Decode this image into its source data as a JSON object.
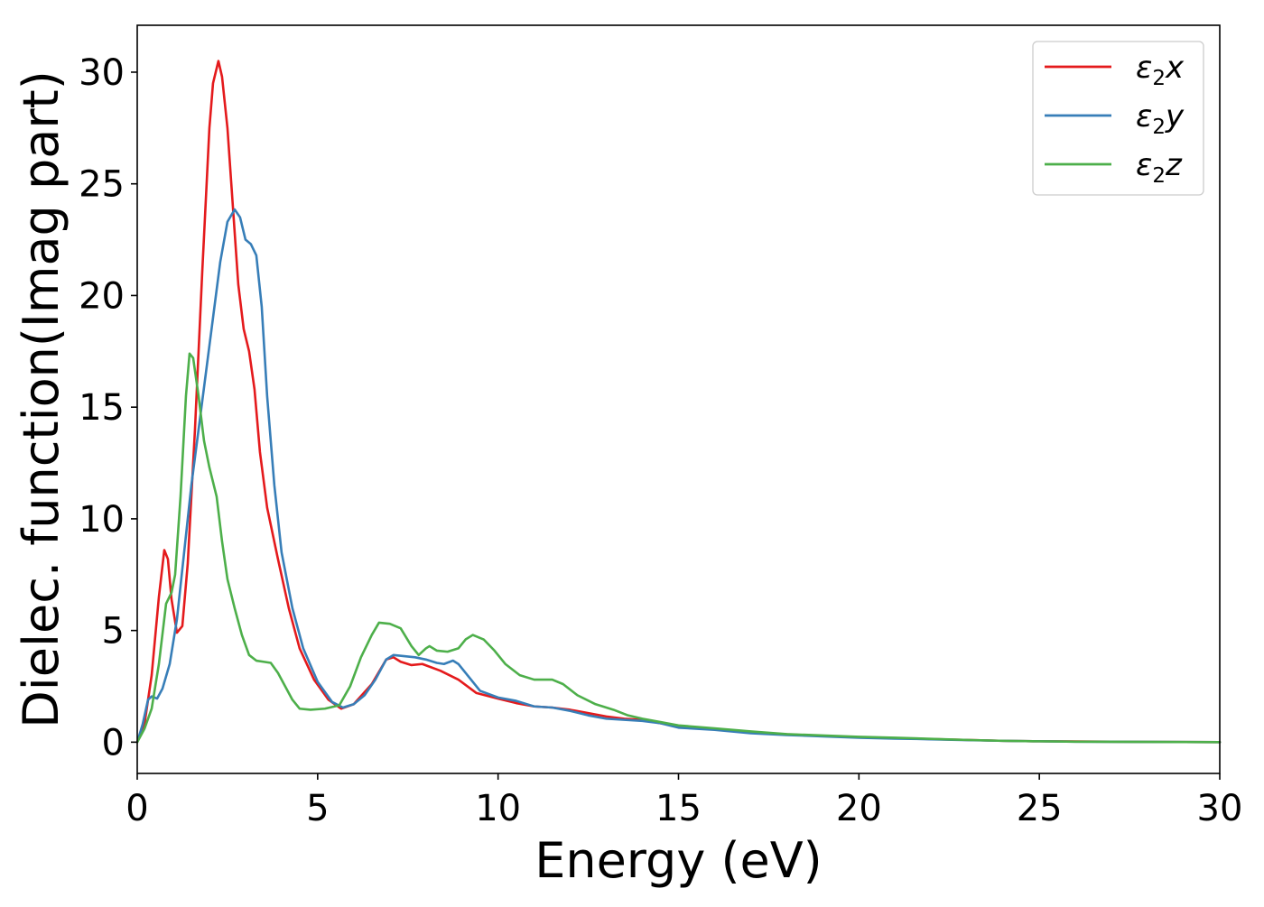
{
  "chart_data": {
    "type": "line",
    "xlabel": "Energy (eV)",
    "ylabel": "Dielec. function(Imag part)",
    "xlim": [
      0,
      30
    ],
    "ylim": [
      -1.4,
      32.1
    ],
    "x_ticks": [
      0,
      5,
      10,
      15,
      20,
      25,
      30
    ],
    "y_ticks": [
      0,
      5,
      10,
      15,
      20,
      25,
      30
    ],
    "x_tick_labels": [
      "0",
      "5",
      "10",
      "15",
      "20",
      "25",
      "30"
    ],
    "y_tick_labels": [
      "0",
      "5",
      "10",
      "15",
      "20",
      "25",
      "30"
    ],
    "grid": false,
    "legend_placement": "top-right",
    "series": [
      {
        "name": "ε₂x",
        "legend_base": "ε",
        "legend_sub": "2",
        "legend_var": "x",
        "color": "#e41a1c",
        "points": [
          [
            0,
            0
          ],
          [
            0.2,
            0.8
          ],
          [
            0.4,
            3
          ],
          [
            0.6,
            6.5
          ],
          [
            0.75,
            8.6
          ],
          [
            0.85,
            8.2
          ],
          [
            0.95,
            6.4
          ],
          [
            1.1,
            4.9
          ],
          [
            1.25,
            5.2
          ],
          [
            1.4,
            8
          ],
          [
            1.6,
            14
          ],
          [
            1.8,
            21
          ],
          [
            2.0,
            27.5
          ],
          [
            2.1,
            29.5
          ],
          [
            2.25,
            30.5
          ],
          [
            2.35,
            29.8
          ],
          [
            2.5,
            27.5
          ],
          [
            2.65,
            24
          ],
          [
            2.8,
            20.5
          ],
          [
            2.95,
            18.5
          ],
          [
            3.1,
            17.5
          ],
          [
            3.25,
            15.8
          ],
          [
            3.4,
            13
          ],
          [
            3.6,
            10.5
          ],
          [
            3.9,
            8.2
          ],
          [
            4.2,
            6
          ],
          [
            4.5,
            4.2
          ],
          [
            4.9,
            2.8
          ],
          [
            5.3,
            1.9
          ],
          [
            5.65,
            1.5
          ],
          [
            6.0,
            1.7
          ],
          [
            6.5,
            2.6
          ],
          [
            6.9,
            3.7
          ],
          [
            7.1,
            3.8
          ],
          [
            7.3,
            3.6
          ],
          [
            7.6,
            3.45
          ],
          [
            7.9,
            3.5
          ],
          [
            8.4,
            3.2
          ],
          [
            8.9,
            2.8
          ],
          [
            9.4,
            2.2
          ],
          [
            10.0,
            1.95
          ],
          [
            10.5,
            1.75
          ],
          [
            11.0,
            1.6
          ],
          [
            11.5,
            1.55
          ],
          [
            12.0,
            1.45
          ],
          [
            12.5,
            1.3
          ],
          [
            13.0,
            1.15
          ],
          [
            13.5,
            1.05
          ],
          [
            14.0,
            1.0
          ],
          [
            14.5,
            0.85
          ],
          [
            15.0,
            0.7
          ],
          [
            16.0,
            0.6
          ],
          [
            17.0,
            0.45
          ],
          [
            18.0,
            0.35
          ],
          [
            19.0,
            0.28
          ],
          [
            20.0,
            0.22
          ],
          [
            21.0,
            0.18
          ],
          [
            22.0,
            0.14
          ],
          [
            23.0,
            0.1
          ],
          [
            24.0,
            0.06
          ],
          [
            25.0,
            0.04
          ],
          [
            26.0,
            0.03
          ],
          [
            28.0,
            0.01
          ],
          [
            30.0,
            0
          ]
        ]
      },
      {
        "name": "ε₂y",
        "legend_base": "ε",
        "legend_sub": "2",
        "legend_var": "y",
        "color": "#377eb8",
        "points": [
          [
            0,
            0
          ],
          [
            0.15,
            0.8
          ],
          [
            0.3,
            1.9
          ],
          [
            0.4,
            2.05
          ],
          [
            0.55,
            1.95
          ],
          [
            0.7,
            2.4
          ],
          [
            0.9,
            3.5
          ],
          [
            1.1,
            5.5
          ],
          [
            1.3,
            8.5
          ],
          [
            1.5,
            11.5
          ],
          [
            1.7,
            14
          ],
          [
            1.9,
            16.5
          ],
          [
            2.1,
            19
          ],
          [
            2.3,
            21.5
          ],
          [
            2.5,
            23.3
          ],
          [
            2.7,
            23.85
          ],
          [
            2.85,
            23.5
          ],
          [
            3.0,
            22.5
          ],
          [
            3.15,
            22.3
          ],
          [
            3.3,
            21.8
          ],
          [
            3.45,
            19.5
          ],
          [
            3.6,
            15.5
          ],
          [
            3.8,
            11.5
          ],
          [
            4.0,
            8.5
          ],
          [
            4.3,
            6
          ],
          [
            4.6,
            4.2
          ],
          [
            5.0,
            2.7
          ],
          [
            5.4,
            1.8
          ],
          [
            5.7,
            1.55
          ],
          [
            6.0,
            1.7
          ],
          [
            6.3,
            2.1
          ],
          [
            6.6,
            2.8
          ],
          [
            6.9,
            3.7
          ],
          [
            7.1,
            3.9
          ],
          [
            7.4,
            3.85
          ],
          [
            7.7,
            3.8
          ],
          [
            8.0,
            3.7
          ],
          [
            8.3,
            3.55
          ],
          [
            8.5,
            3.5
          ],
          [
            8.75,
            3.65
          ],
          [
            8.9,
            3.5
          ],
          [
            9.2,
            2.9
          ],
          [
            9.5,
            2.3
          ],
          [
            10.0,
            2.0
          ],
          [
            10.5,
            1.85
          ],
          [
            11.0,
            1.6
          ],
          [
            11.5,
            1.55
          ],
          [
            12.0,
            1.4
          ],
          [
            12.5,
            1.2
          ],
          [
            13.0,
            1.05
          ],
          [
            13.5,
            1.0
          ],
          [
            14.0,
            0.95
          ],
          [
            14.5,
            0.85
          ],
          [
            15.0,
            0.65
          ],
          [
            16.0,
            0.55
          ],
          [
            17.0,
            0.4
          ],
          [
            18.0,
            0.32
          ],
          [
            19.0,
            0.26
          ],
          [
            20.0,
            0.2
          ],
          [
            21.0,
            0.16
          ],
          [
            22.0,
            0.13
          ],
          [
            23.0,
            0.09
          ],
          [
            24.0,
            0.06
          ],
          [
            25.0,
            0.04
          ],
          [
            26.0,
            0.02
          ],
          [
            28.0,
            0.01
          ],
          [
            30.0,
            0
          ]
        ]
      },
      {
        "name": "ε₂z",
        "legend_base": "ε",
        "legend_sub": "2",
        "legend_var": "z",
        "color": "#4daf4a",
        "points": [
          [
            0,
            0
          ],
          [
            0.2,
            0.6
          ],
          [
            0.4,
            1.5
          ],
          [
            0.6,
            3.5
          ],
          [
            0.8,
            6.2
          ],
          [
            0.95,
            6.7
          ],
          [
            1.05,
            7.5
          ],
          [
            1.2,
            11
          ],
          [
            1.35,
            15.5
          ],
          [
            1.45,
            17.4
          ],
          [
            1.55,
            17.2
          ],
          [
            1.7,
            15.5
          ],
          [
            1.85,
            13.5
          ],
          [
            2.0,
            12.3
          ],
          [
            2.2,
            11
          ],
          [
            2.35,
            9
          ],
          [
            2.5,
            7.3
          ],
          [
            2.7,
            6
          ],
          [
            2.9,
            4.8
          ],
          [
            3.1,
            3.9
          ],
          [
            3.3,
            3.65
          ],
          [
            3.5,
            3.6
          ],
          [
            3.7,
            3.55
          ],
          [
            3.9,
            3.1
          ],
          [
            4.1,
            2.5
          ],
          [
            4.3,
            1.9
          ],
          [
            4.5,
            1.5
          ],
          [
            4.8,
            1.45
          ],
          [
            5.2,
            1.5
          ],
          [
            5.6,
            1.65
          ],
          [
            5.9,
            2.5
          ],
          [
            6.2,
            3.8
          ],
          [
            6.5,
            4.8
          ],
          [
            6.7,
            5.35
          ],
          [
            7.0,
            5.3
          ],
          [
            7.3,
            5.1
          ],
          [
            7.6,
            4.3
          ],
          [
            7.8,
            3.9
          ],
          [
            8.0,
            4.2
          ],
          [
            8.1,
            4.3
          ],
          [
            8.3,
            4.1
          ],
          [
            8.6,
            4.05
          ],
          [
            8.9,
            4.2
          ],
          [
            9.1,
            4.6
          ],
          [
            9.3,
            4.8
          ],
          [
            9.6,
            4.6
          ],
          [
            9.9,
            4.1
          ],
          [
            10.2,
            3.5
          ],
          [
            10.6,
            3.0
          ],
          [
            11.0,
            2.8
          ],
          [
            11.5,
            2.8
          ],
          [
            11.8,
            2.6
          ],
          [
            12.2,
            2.1
          ],
          [
            12.7,
            1.7
          ],
          [
            13.2,
            1.45
          ],
          [
            13.6,
            1.2
          ],
          [
            14.0,
            1.05
          ],
          [
            14.5,
            0.9
          ],
          [
            15.0,
            0.75
          ],
          [
            16.0,
            0.62
          ],
          [
            17.0,
            0.48
          ],
          [
            18.0,
            0.36
          ],
          [
            19.0,
            0.3
          ],
          [
            20.0,
            0.24
          ],
          [
            21.0,
            0.2
          ],
          [
            22.0,
            0.15
          ],
          [
            23.0,
            0.1
          ],
          [
            24.0,
            0.06
          ],
          [
            25.0,
            0.04
          ],
          [
            26.0,
            0.02
          ],
          [
            28.0,
            0.01
          ],
          [
            30.0,
            0
          ]
        ]
      }
    ]
  }
}
